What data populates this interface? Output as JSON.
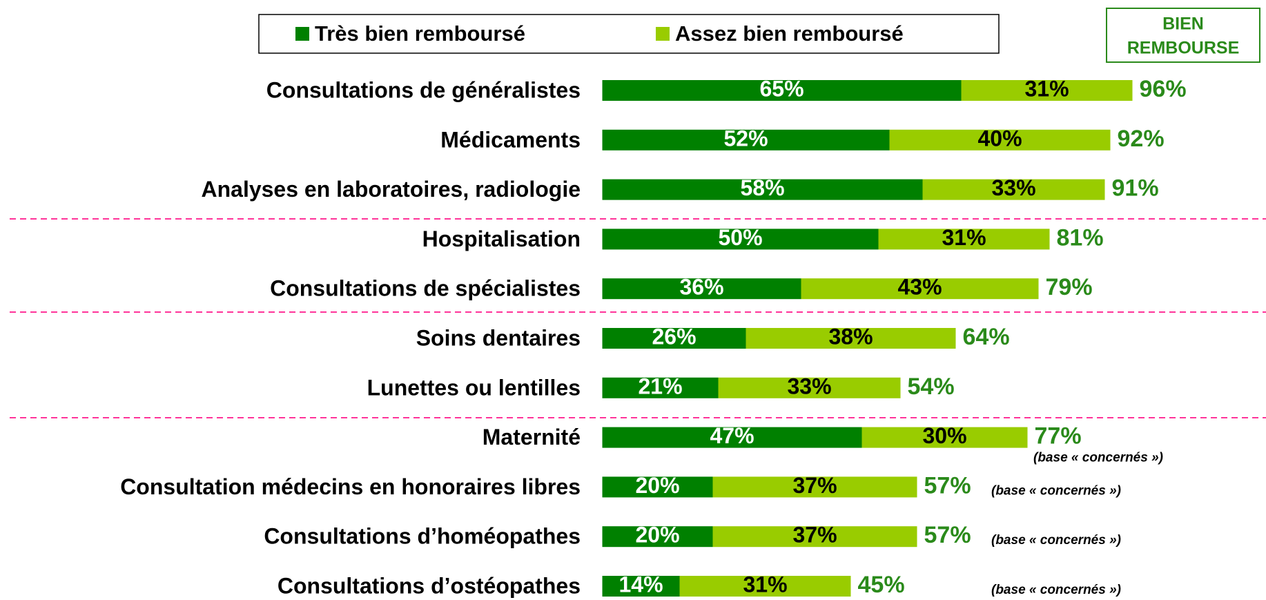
{
  "chart_data": {
    "type": "stacked_barh",
    "categories": [
      "Consultations de généralistes",
      "Médicaments",
      "Analyses en laboratoires, radiologie",
      "Hospitalisation",
      "Consultations de spécialistes",
      "Soins dentaires",
      "Lunettes ou lentilles",
      "Maternité",
      "Consultation médecins en honoraires libres",
      "Consultations d’homéopathes",
      "Consultations d’ostéopathes"
    ],
    "series": [
      {
        "name": "Très bien remboursé",
        "color": "#008000",
        "label_color": "#ffffff",
        "values": [
          65,
          52,
          58,
          50,
          36,
          26,
          21,
          47,
          20,
          20,
          14
        ],
        "value_labels": [
          "65%",
          "52%",
          "58%",
          "50%",
          "36%",
          "26%",
          "21%",
          "47%",
          "20%",
          "20%",
          "14%"
        ]
      },
      {
        "name": "Assez bien remboursé",
        "color": "#99cc00",
        "label_color": "#000000",
        "values": [
          31,
          40,
          33,
          31,
          43,
          38,
          33,
          30,
          37,
          37,
          31
        ],
        "value_labels": [
          "31%",
          "40%",
          "33%",
          "31%",
          "43%",
          "38%",
          "33%",
          "30%",
          "37%",
          "37%",
          "31%"
        ]
      }
    ],
    "totals_header": [
      "BIEN",
      "REMBOURSE"
    ],
    "totals": [
      96,
      92,
      91,
      81,
      79,
      64,
      54,
      77,
      57,
      57,
      45
    ],
    "total_labels": [
      "96%",
      "92%",
      "91%",
      "81%",
      "79%",
      "64%",
      "54%",
      "77%",
      "57%",
      "57%",
      "45%"
    ],
    "total_color": "#2a8a1a",
    "notes": [
      null,
      null,
      null,
      null,
      null,
      null,
      null,
      "(base « concernés »)",
      "(base « concernés »)",
      "(base « concernés »)",
      "(base « concernés »)"
    ],
    "xlim": [
      0,
      100
    ]
  }
}
